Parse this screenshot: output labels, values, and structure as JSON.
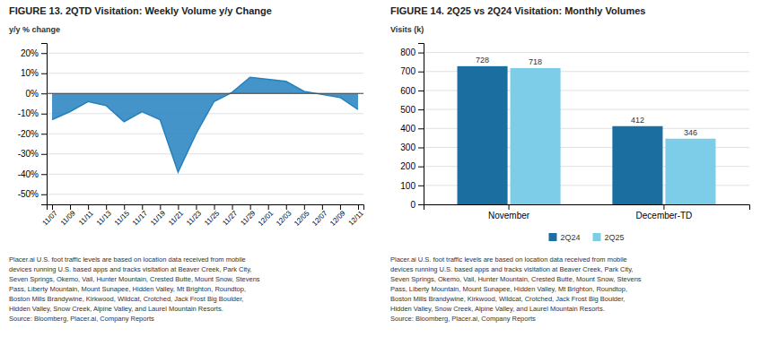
{
  "chart_data": [
    {
      "type": "area",
      "title": "FIGURE 13. 2QTD Visitation: Weekly Volume y/y Change",
      "ylabel": "y/y % change",
      "categories": [
        "11/07",
        "11/09",
        "11/11",
        "11/13",
        "11/15",
        "11/17",
        "11/19",
        "11/21",
        "11/23",
        "11/25",
        "11/27",
        "11/29",
        "12/01",
        "12/03",
        "12/05",
        "12/07",
        "12/09",
        "12/11"
      ],
      "values": [
        -13,
        -9,
        -4,
        -6,
        -14,
        -9,
        -13,
        -39,
        -20,
        -4,
        0.5,
        8,
        7,
        6,
        1,
        -0.5,
        -2,
        -8
      ],
      "color": "#2481C0",
      "ylim": [
        -55,
        25
      ],
      "yticks": [
        {
          "value": -50,
          "label": "-50%"
        },
        {
          "value": -40,
          "label": "-40%"
        },
        {
          "value": -30,
          "label": "-30%"
        },
        {
          "value": -20,
          "label": "-20%"
        },
        {
          "value": -10,
          "label": "-10%"
        },
        {
          "value": 0,
          "label": "0%"
        },
        {
          "value": 10,
          "label": "10%"
        },
        {
          "value": 20,
          "label": "20%"
        }
      ],
      "grid": true,
      "annotations": [
        "Placer.ai U.S. foot traffic levels are based on location data received from mobile\ndevices running U.S. based apps and tracks visitation at Beaver Creek, Park City,\nSeven Springs, Okemo, Vail, Hunter Mountain, Crested Butte, Mount Snow, Stevens\nPass, Liberty Mountain, Mount Sunapee, Hidden Valley, Mt Brighton, Roundtop,\nBoston Mills Brandywine, Kirkwood, Wildcat, Crotched, Jack Frost Big Boulder,\nHidden Valley, Snow Creek, Alpine Valley, and Laurel Mountain Resorts.\nSource: Bloomberg, Placer.ai, Company Reports"
      ]
    },
    {
      "type": "bar",
      "title": "FIGURE 14. 2Q25 vs 2Q24 Visitation: Monthly Volumes",
      "ylabel": "Visits (k)",
      "categories": [
        "November",
        "December-TD"
      ],
      "series": [
        {
          "name": "2Q24",
          "color": "#1a6fa0",
          "values": [
            728,
            412
          ]
        },
        {
          "name": "2Q25",
          "color": "#7ecde8",
          "values": [
            718,
            346
          ]
        }
      ],
      "ylim": [
        0,
        850
      ],
      "yticks": [
        0,
        100,
        200,
        300,
        400,
        500,
        600,
        700,
        800
      ],
      "grid": true,
      "legend": "bottom",
      "data_labels": true,
      "annotations": [
        "Placer.ai U.S. foot traffic levels are based on location data received from mobile\ndevices running U.S. based apps and tracks visitation at Beaver Creek, Park City,\nSeven Springs, Okemo, Vail, Hunter Mountain, Crested Butte, Mount Snow, Stevens\nPass, Liberty Mountain, Mount Sunapee, Hidden Valley, Mt Brighton, Roundtop,\nBoston Mills Brandywine, Kirkwood, Wildcat, Crotched, Jack Frost Big Boulder,\nHidden Valley, Snow Creek, Alpine Valley, and Laurel Mountain Resorts.\nSource: Bloomberg, Placer.ai, Company Reports"
      ]
    }
  ]
}
